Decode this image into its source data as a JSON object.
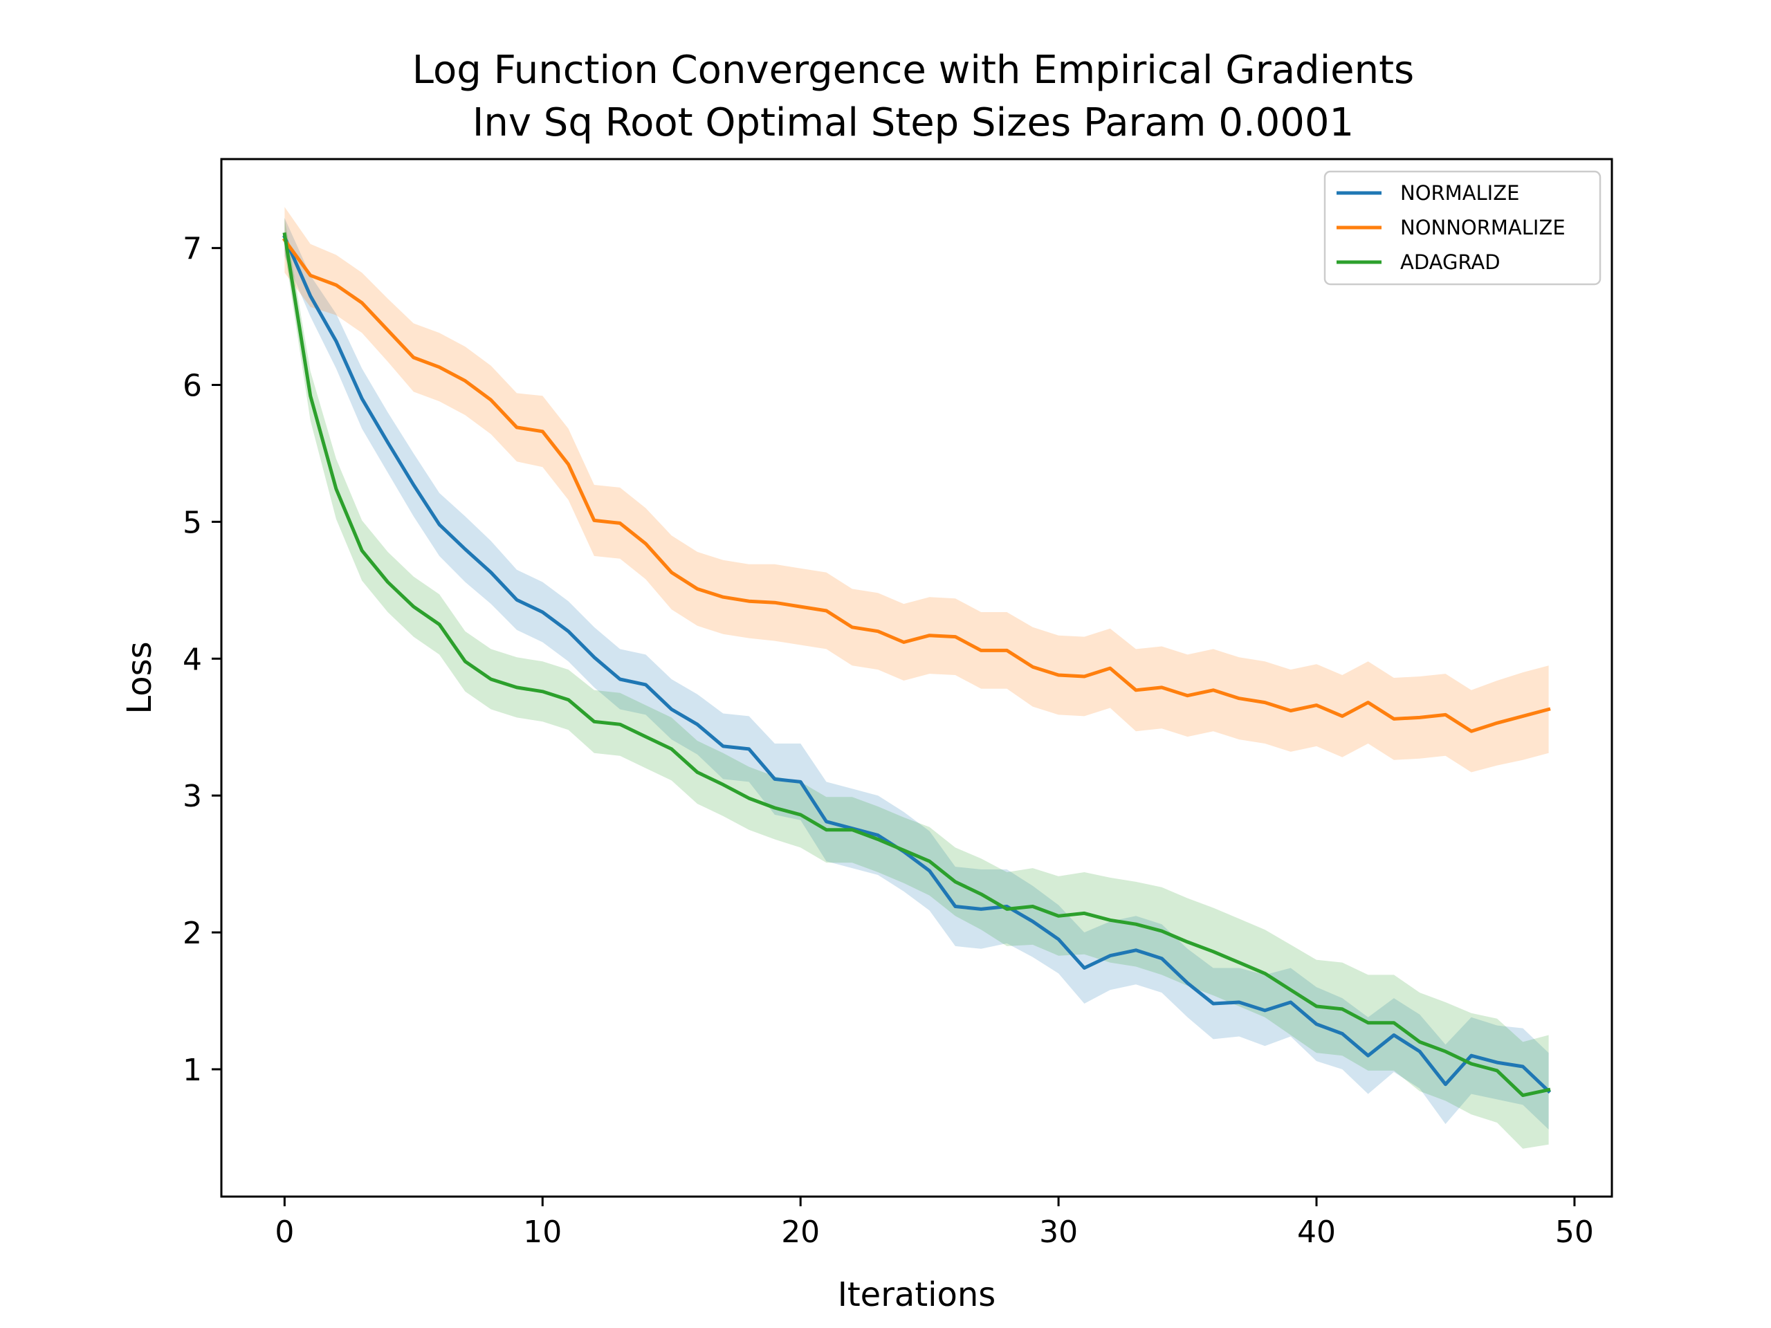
{
  "chart_data": {
    "type": "line",
    "title": [
      "Log Function Convergence with Empirical Gradients",
      "Inv Sq Root Optimal Step Sizes Param 0.0001"
    ],
    "xlabel": "Iterations",
    "ylabel": "Loss",
    "xlim": [
      -2.45,
      51.45
    ],
    "ylim": [
      0.07,
      7.65
    ],
    "xticks": [
      0,
      10,
      20,
      30,
      40,
      50
    ],
    "yticks": [
      1,
      2,
      3,
      4,
      5,
      6,
      7
    ],
    "grid": false,
    "legend_position": "top-right",
    "x": [
      0,
      1,
      2,
      3,
      4,
      5,
      6,
      7,
      8,
      9,
      10,
      11,
      12,
      13,
      14,
      15,
      16,
      17,
      18,
      19,
      20,
      21,
      22,
      23,
      24,
      25,
      26,
      27,
      28,
      29,
      30,
      31,
      32,
      33,
      34,
      35,
      36,
      37,
      38,
      39,
      40,
      41,
      42,
      43,
      44,
      45,
      46,
      47,
      48,
      49
    ],
    "series": [
      {
        "name": "NORMALIZE",
        "color": "#1f77b4",
        "values": [
          7.08,
          6.65,
          6.32,
          5.9,
          5.58,
          5.27,
          4.98,
          4.8,
          4.63,
          4.43,
          4.34,
          4.2,
          4.01,
          3.85,
          3.81,
          3.63,
          3.52,
          3.36,
          3.34,
          3.12,
          3.1,
          2.81,
          2.76,
          2.71,
          2.59,
          2.45,
          2.19,
          2.17,
          2.19,
          2.08,
          1.95,
          1.74,
          1.83,
          1.87,
          1.81,
          1.63,
          1.48,
          1.49,
          1.43,
          1.49,
          1.33,
          1.26,
          1.1,
          1.25,
          1.13,
          0.89,
          1.1,
          1.05,
          1.02,
          0.84
        ],
        "band_upper": [
          7.22,
          6.8,
          6.52,
          6.12,
          5.8,
          5.5,
          5.21,
          5.04,
          4.86,
          4.65,
          4.56,
          4.42,
          4.23,
          4.07,
          4.03,
          3.85,
          3.74,
          3.6,
          3.58,
          3.38,
          3.38,
          3.1,
          3.05,
          3.0,
          2.88,
          2.74,
          2.48,
          2.46,
          2.46,
          2.34,
          2.2,
          2.0,
          2.08,
          2.12,
          2.06,
          1.88,
          1.74,
          1.74,
          1.69,
          1.74,
          1.6,
          1.52,
          1.38,
          1.52,
          1.4,
          1.18,
          1.38,
          1.32,
          1.3,
          1.12
        ],
        "band_lower": [
          6.94,
          6.5,
          6.12,
          5.68,
          5.36,
          5.04,
          4.75,
          4.56,
          4.4,
          4.21,
          4.12,
          3.98,
          3.79,
          3.63,
          3.59,
          3.41,
          3.3,
          3.12,
          3.1,
          2.86,
          2.82,
          2.52,
          2.47,
          2.42,
          2.3,
          2.16,
          1.9,
          1.88,
          1.92,
          1.82,
          1.7,
          1.48,
          1.58,
          1.62,
          1.56,
          1.38,
          1.22,
          1.24,
          1.17,
          1.24,
          1.06,
          1.0,
          0.82,
          0.98,
          0.86,
          0.6,
          0.82,
          0.78,
          0.74,
          0.56
        ]
      },
      {
        "name": "NONNORMALIZE",
        "color": "#ff7f0e",
        "values": [
          7.06,
          6.8,
          6.73,
          6.6,
          6.4,
          6.2,
          6.13,
          6.03,
          5.89,
          5.69,
          5.66,
          5.42,
          5.01,
          4.99,
          4.84,
          4.63,
          4.51,
          4.45,
          4.42,
          4.41,
          4.38,
          4.35,
          4.23,
          4.2,
          4.12,
          4.17,
          4.16,
          4.06,
          4.06,
          3.94,
          3.88,
          3.87,
          3.93,
          3.77,
          3.79,
          3.73,
          3.77,
          3.71,
          3.68,
          3.62,
          3.66,
          3.58,
          3.68,
          3.56,
          3.57,
          3.59,
          3.47,
          3.53,
          3.58,
          3.63
        ],
        "band_upper": [
          7.3,
          7.03,
          6.95,
          6.82,
          6.63,
          6.45,
          6.38,
          6.28,
          6.14,
          5.94,
          5.92,
          5.68,
          5.27,
          5.25,
          5.1,
          4.9,
          4.78,
          4.72,
          4.69,
          4.69,
          4.66,
          4.63,
          4.51,
          4.48,
          4.4,
          4.45,
          4.44,
          4.34,
          4.34,
          4.23,
          4.17,
          4.16,
          4.22,
          4.07,
          4.09,
          4.03,
          4.07,
          4.01,
          3.98,
          3.92,
          3.96,
          3.88,
          3.98,
          3.86,
          3.87,
          3.89,
          3.77,
          3.84,
          3.9,
          3.95
        ],
        "band_lower": [
          6.82,
          6.57,
          6.51,
          6.38,
          6.17,
          5.95,
          5.88,
          5.78,
          5.64,
          5.44,
          5.4,
          5.16,
          4.75,
          4.73,
          4.58,
          4.36,
          4.24,
          4.18,
          4.15,
          4.13,
          4.1,
          4.07,
          3.95,
          3.92,
          3.84,
          3.89,
          3.88,
          3.78,
          3.78,
          3.65,
          3.59,
          3.58,
          3.64,
          3.47,
          3.49,
          3.43,
          3.47,
          3.41,
          3.38,
          3.32,
          3.36,
          3.28,
          3.38,
          3.26,
          3.27,
          3.29,
          3.17,
          3.22,
          3.26,
          3.31
        ]
      },
      {
        "name": "ADAGRAD",
        "color": "#2ca02c",
        "values": [
          7.1,
          5.92,
          5.24,
          4.79,
          4.56,
          4.38,
          4.25,
          3.98,
          3.85,
          3.79,
          3.76,
          3.7,
          3.54,
          3.52,
          3.43,
          3.34,
          3.17,
          3.08,
          2.98,
          2.91,
          2.86,
          2.75,
          2.75,
          2.68,
          2.6,
          2.52,
          2.37,
          2.28,
          2.17,
          2.19,
          2.12,
          2.14,
          2.09,
          2.06,
          2.01,
          1.93,
          1.86,
          1.78,
          1.7,
          1.58,
          1.46,
          1.44,
          1.34,
          1.34,
          1.2,
          1.13,
          1.04,
          0.99,
          0.81,
          0.85
        ],
        "band_upper": [
          7.22,
          6.1,
          5.46,
          5.01,
          4.78,
          4.6,
          4.47,
          4.2,
          4.07,
          4.01,
          3.98,
          3.92,
          3.77,
          3.75,
          3.66,
          3.57,
          3.4,
          3.31,
          3.21,
          3.14,
          3.1,
          2.99,
          2.99,
          2.92,
          2.84,
          2.77,
          2.62,
          2.54,
          2.44,
          2.47,
          2.41,
          2.44,
          2.4,
          2.37,
          2.33,
          2.25,
          2.18,
          2.1,
          2.02,
          1.91,
          1.8,
          1.78,
          1.69,
          1.69,
          1.56,
          1.49,
          1.41,
          1.37,
          1.2,
          1.25
        ],
        "band_lower": [
          6.98,
          5.74,
          5.02,
          4.57,
          4.34,
          4.16,
          4.03,
          3.76,
          3.63,
          3.57,
          3.54,
          3.48,
          3.31,
          3.29,
          3.2,
          3.11,
          2.94,
          2.85,
          2.75,
          2.68,
          2.62,
          2.51,
          2.51,
          2.44,
          2.36,
          2.27,
          2.12,
          2.02,
          1.9,
          1.91,
          1.83,
          1.84,
          1.78,
          1.75,
          1.69,
          1.61,
          1.54,
          1.46,
          1.38,
          1.25,
          1.12,
          1.1,
          0.99,
          0.99,
          0.84,
          0.77,
          0.67,
          0.61,
          0.42,
          0.45
        ]
      }
    ]
  }
}
